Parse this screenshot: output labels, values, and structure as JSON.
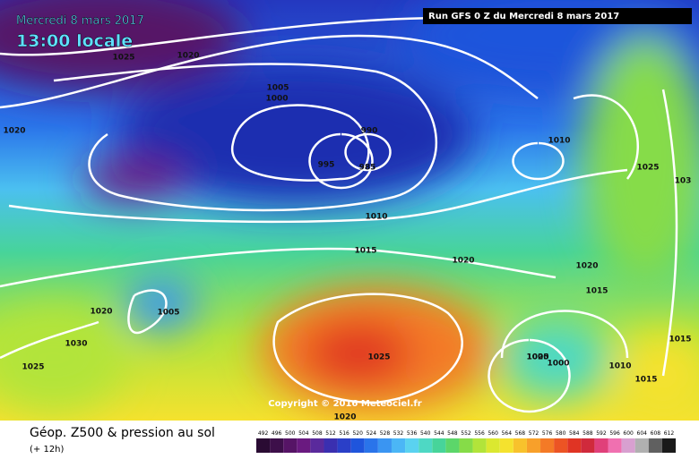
{
  "header": {
    "date": "Mercredi 8 mars 2017",
    "time": "13:00 locale",
    "run": "Run GFS 0 Z du Mercredi 8 mars 2017"
  },
  "copyright": "Copyright © 2016 Meteociel.fr",
  "footer": {
    "title": "Géop. Z500 & pression au sol",
    "lead": "(+ 12h)"
  },
  "isobar_labels": [
    "1025",
    "1020",
    "1020",
    "1005",
    "1000",
    "990",
    "995",
    "985",
    "1010",
    "1025",
    "103",
    "1020",
    "1010",
    "1015",
    "1020",
    "1020",
    "1015",
    "1005",
    "1020",
    "1025",
    "1030",
    "1025",
    "1005",
    "1000",
    "1010",
    "1015",
    "1015",
    "1020"
  ],
  "scale": {
    "labels": [
      "492",
      "496",
      "500",
      "504",
      "508",
      "512",
      "516",
      "520",
      "524",
      "528",
      "532",
      "536",
      "540",
      "544",
      "548",
      "552",
      "556",
      "560",
      "564",
      "568",
      "572",
      "576",
      "580",
      "584",
      "588",
      "592",
      "596",
      "600",
      "604",
      "608",
      "612"
    ],
    "colors": [
      "#2a0b33",
      "#3d0f4a",
      "#561466",
      "#6a1a80",
      "#5a2a9c",
      "#3a2fb0",
      "#2a3fc8",
      "#1f55dc",
      "#2a74ea",
      "#3a95f2",
      "#4bb6f6",
      "#5ad2f0",
      "#4ed8c4",
      "#47d49a",
      "#5cd66a",
      "#86dc48",
      "#b2e43a",
      "#dbe830",
      "#f5e22e",
      "#f8c22c",
      "#f8a02a",
      "#f47a26",
      "#ec5424",
      "#e03424",
      "#d02a3c",
      "#e0407a",
      "#f070b0",
      "#d8a0d0",
      "#b0b0b0",
      "#606060",
      "#1a1a1a"
    ]
  }
}
